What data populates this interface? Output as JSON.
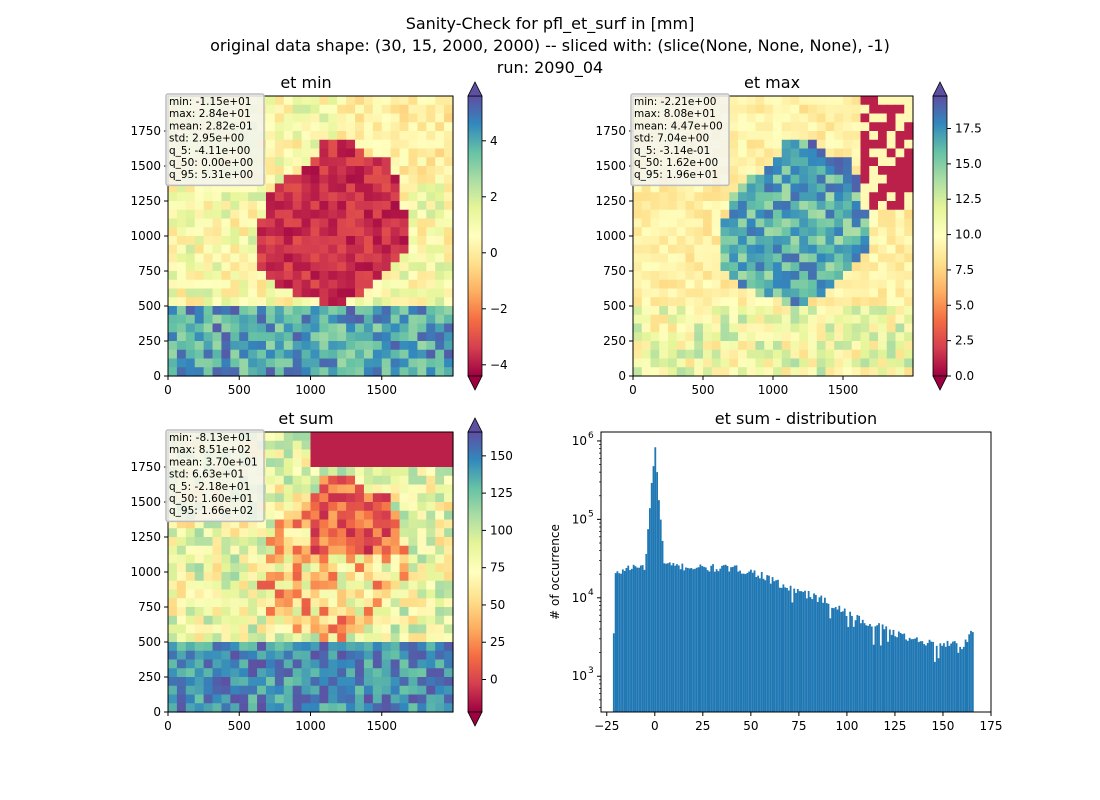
{
  "figure": {
    "title_lines": [
      "Sanity-Check for pfl_et_surf in [mm]",
      "original data shape: (30, 15, 2000, 2000) -- sliced with: (slice(None, None, None), -1)",
      "run: 2090_04"
    ]
  },
  "colors": {
    "cmap_spectral": [
      "#9e0142",
      "#d53e4f",
      "#f46d43",
      "#fdae61",
      "#fee08b",
      "#ffffbf",
      "#e6f598",
      "#abdda4",
      "#66c2a5",
      "#3288bd",
      "#5e4fa2"
    ],
    "hist_bar": "#1f77b4",
    "stats_box_bg": "#f5f5f0",
    "stats_box_border": "#bdbdbd"
  },
  "chart_data": [
    {
      "id": "et-min",
      "type": "heatmap",
      "title": "et min",
      "xlim": [
        0,
        2000
      ],
      "ylim": [
        0,
        2000
      ],
      "xticks": [
        "0",
        "500",
        "1000",
        "1500"
      ],
      "yticks": [
        "0",
        "250",
        "500",
        "750",
        "1000",
        "1250",
        "1500",
        "1750"
      ],
      "colorbar": {
        "range": [
          -4.4,
          5.6
        ],
        "ticks": [
          -4,
          -2,
          0,
          2,
          4
        ],
        "tick_labels": [
          "−4",
          "−2",
          "0",
          "2",
          "4"
        ],
        "extend": "both"
      },
      "stats": [
        "min: -1.15e+01",
        "max: 2.84e+01",
        "mean: 2.82e-01",
        "std: 2.95e+00",
        "q_5: -4.11e+00",
        "q_50: 0.00e+00",
        "q_95: 5.31e+00"
      ]
    },
    {
      "id": "et-max",
      "type": "heatmap",
      "title": "et max",
      "xlim": [
        0,
        2000
      ],
      "ylim": [
        0,
        2000
      ],
      "xticks": [
        "0",
        "500",
        "1000",
        "1500"
      ],
      "yticks": [
        "0",
        "250",
        "500",
        "750",
        "1000",
        "1250",
        "1500",
        "1750"
      ],
      "colorbar": {
        "range": [
          0,
          19.8
        ],
        "ticks": [
          0,
          2.5,
          5,
          7.5,
          10,
          12.5,
          15,
          17.5
        ],
        "tick_labels": [
          "0.0",
          "2.5",
          "5.0",
          "7.5",
          "10.0",
          "12.5",
          "15.0",
          "17.5"
        ],
        "extend": "both"
      },
      "stats": [
        "min: -2.21e+00",
        "max: 8.08e+01",
        "mean: 4.47e+00",
        "std: 7.04e+00",
        "q_5: -3.14e-01",
        "q_50: 1.62e+00",
        "q_95: 1.96e+01"
      ]
    },
    {
      "id": "et-sum",
      "type": "heatmap",
      "title": "et sum",
      "xlim": [
        0,
        2000
      ],
      "ylim": [
        0,
        2000
      ],
      "xticks": [
        "0",
        "500",
        "1000",
        "1500"
      ],
      "yticks": [
        "0",
        "250",
        "500",
        "750",
        "1000",
        "1250",
        "1500",
        "1750"
      ],
      "colorbar": {
        "range": [
          -21.8,
          166
        ],
        "ticks": [
          0,
          25,
          50,
          75,
          100,
          125,
          150
        ],
        "tick_labels": [
          "0",
          "25",
          "50",
          "75",
          "100",
          "125",
          "150"
        ],
        "extend": "both"
      },
      "stats": [
        "min: -8.13e+01",
        "max: 8.51e+02",
        "mean: 3.70e+01",
        "std: 6.63e+01",
        "q_5: -2.18e+01",
        "q_50: 1.60e+01",
        "q_95: 1.66e+02"
      ]
    },
    {
      "id": "et-sum-distribution",
      "type": "bar",
      "title": "et sum - distribution",
      "ylabel": "# of occurrence",
      "xlim": [
        -28,
        175
      ],
      "yscale": "log",
      "ylim": [
        350,
        1300000
      ],
      "xticks": [
        -25,
        0,
        25,
        50,
        75,
        100,
        125,
        150,
        175
      ],
      "xtick_labels": [
        "−25",
        "0",
        "25",
        "50",
        "75",
        "100",
        "125",
        "150",
        "175"
      ],
      "yticks": [
        1000,
        10000,
        100000,
        1000000
      ],
      "ytick_labels": [
        "10",
        "10",
        "10",
        "10"
      ],
      "ytick_exponents": [
        "3",
        "4",
        "5",
        "6"
      ],
      "bin_edges_range": [
        -21.8,
        166
      ],
      "approx_counts_by_x": [
        [
          -21,
          19000
        ],
        [
          -15,
          24000
        ],
        [
          -5,
          25000
        ],
        [
          0,
          830000
        ],
        [
          5,
          26000
        ],
        [
          15,
          25000
        ],
        [
          25,
          24000
        ],
        [
          35,
          24000
        ],
        [
          45,
          23000
        ],
        [
          55,
          20000
        ],
        [
          60,
          17000
        ],
        [
          70,
          13000
        ],
        [
          80,
          11000
        ],
        [
          90,
          9000
        ],
        [
          100,
          6500
        ],
        [
          110,
          5000
        ],
        [
          120,
          4000
        ],
        [
          130,
          3200
        ],
        [
          140,
          2800
        ],
        [
          150,
          2600
        ],
        [
          160,
          2500
        ],
        [
          165,
          3500
        ]
      ]
    }
  ]
}
